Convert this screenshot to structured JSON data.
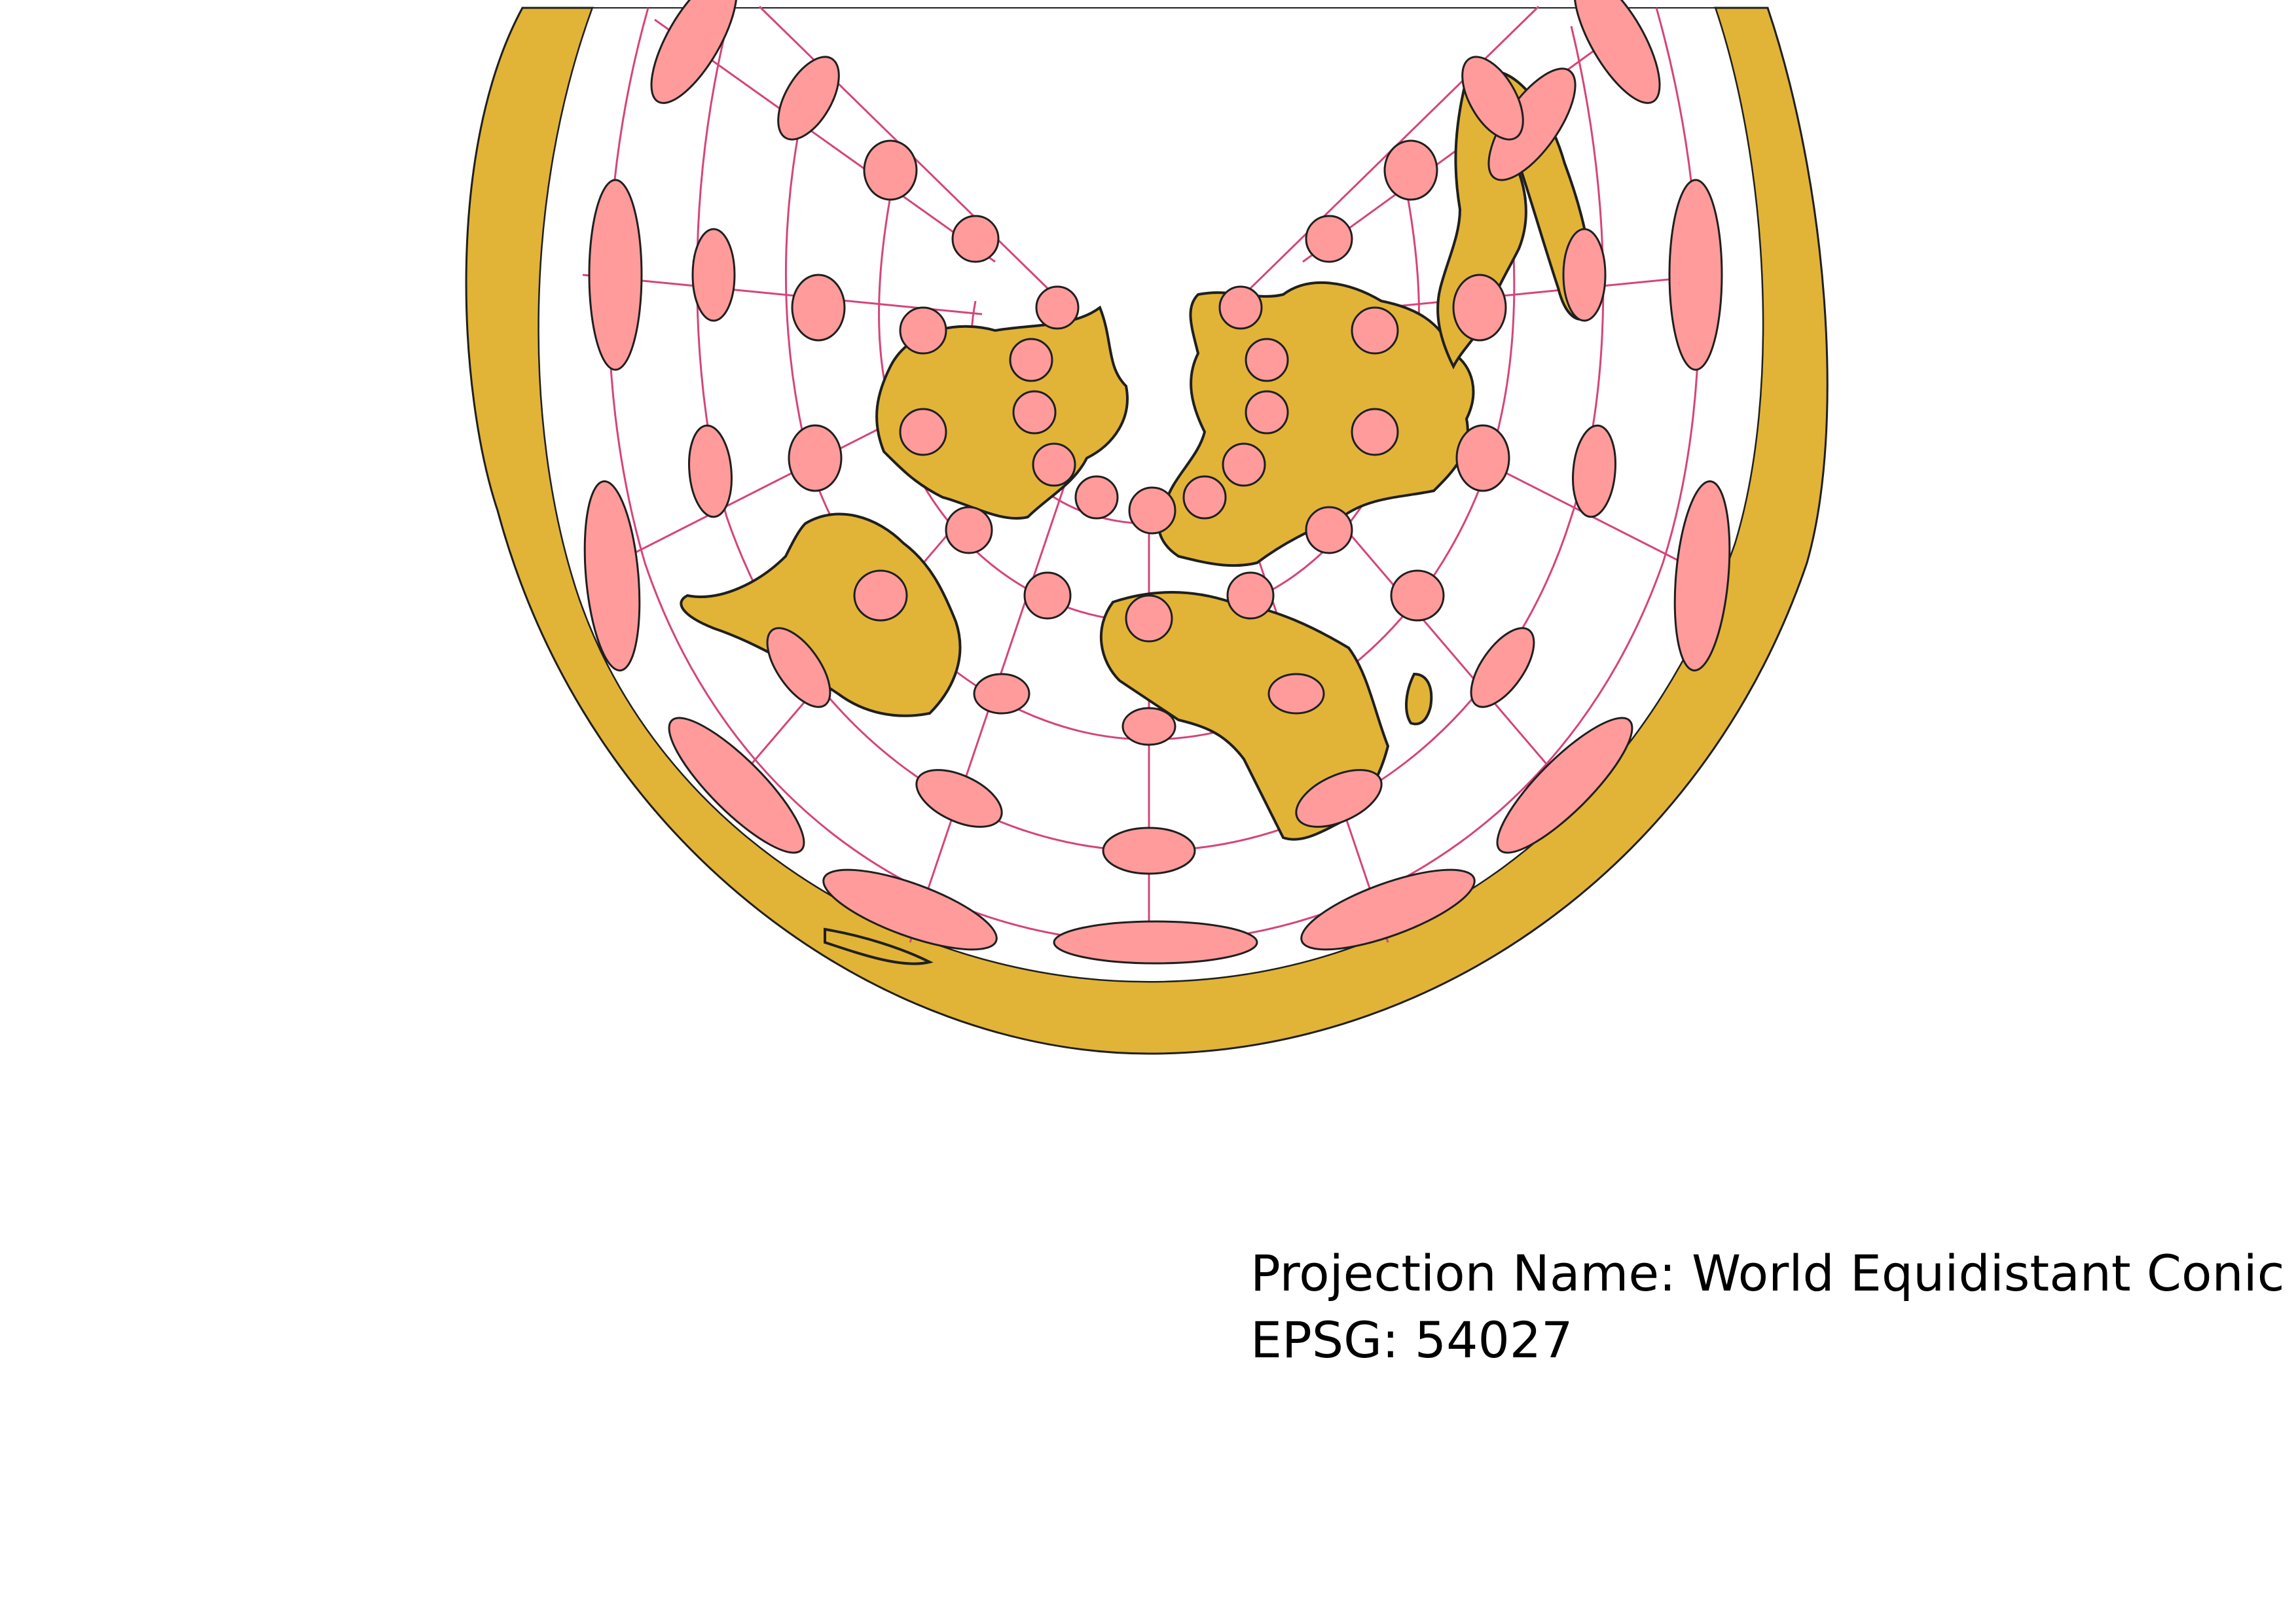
{
  "map": {
    "projection_label": "Projection Name: World Equidistant Conic",
    "epsg_label": "EPSG: 54027",
    "colors": {
      "land": "#e1b437",
      "outline": "#1f1f1f",
      "ocean": "#ffffff",
      "graticule": "#d4457a",
      "ellipse_fill": "#ff9b9b"
    },
    "layers": [
      "graticule",
      "land",
      "tissot-indicatrix"
    ],
    "icon_names": [
      "map-projection"
    ]
  }
}
